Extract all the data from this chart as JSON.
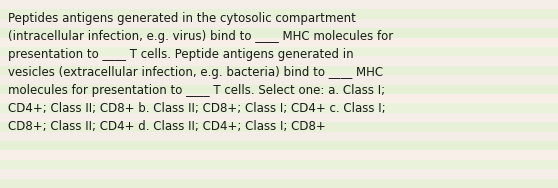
{
  "text": "Peptides antigens generated in the cytosolic compartment\n(intracellular infection, e.g. virus) bind to ____ MHC molecules for\npresentation to ____ T cells. Peptide antigens generated in\nvesicles (extracellular infection, e.g. bacteria) bind to ____ MHC\nmolecules for presentation to ____ T cells. Select one: a. Class I;\nCD4+; Class II; CD8+ b. Class II; CD8+; Class I; CD4+ c. Class I;\nCD8+; Class II; CD4+ d. Class II; CD4+; Class I; CD8+",
  "text_color": "#1a1a1a",
  "font_size": 8.5,
  "figwidth": 5.58,
  "figheight": 1.88,
  "dpi": 100,
  "stripe_colors": [
    "#e8f0d8",
    "#f5ede8",
    "#eaf2dc",
    "#f7efe8",
    "#e6f0d6",
    "#f4ece6",
    "#e8f0d8",
    "#f5ede8",
    "#eaf2dc",
    "#f7efe8",
    "#e6f0d6",
    "#f4ece6",
    "#e8f0d8",
    "#f5ede8",
    "#eaf2dc",
    "#f7efe8",
    "#e6f0d6",
    "#f4ece6",
    "#e8f0d8",
    "#f5ede8"
  ],
  "num_stripes": 20
}
